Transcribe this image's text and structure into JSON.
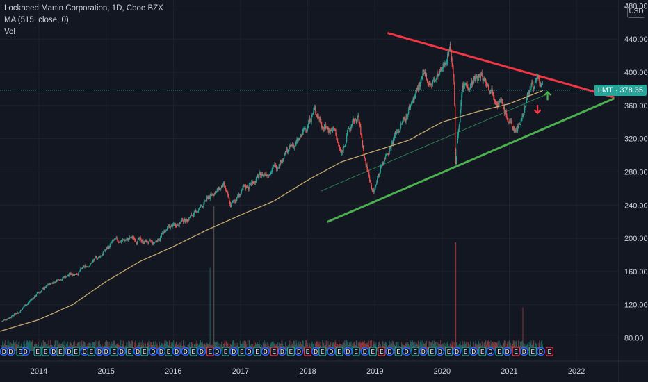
{
  "legend": {
    "title": "Lockheed Martin Corporation, 1D, Cboe BZX",
    "ma": "MA (515, close, 0)",
    "vol": "Vol"
  },
  "currency": "USD",
  "last_price": {
    "ticker": "LMT",
    "value": "378.35"
  },
  "colors": {
    "background": "#131722",
    "up": "#26a69a",
    "down": "#ef5350",
    "ma": "#c8a96b",
    "resistance": "#f23645",
    "support": "#4caf50",
    "dividend": "#2962ff",
    "earnings": "#f23645"
  },
  "chart_data": {
    "type": "candlestick",
    "y_ticks": [
      "80.00",
      "120.00",
      "160.00",
      "200.00",
      "240.00",
      "280.00",
      "320.00",
      "360.00",
      "400.00",
      "440.00",
      "480.00"
    ],
    "ylim": [
      52,
      487
    ],
    "x_ticks": [
      "2014",
      "2015",
      "2016",
      "2017",
      "2018",
      "2019",
      "2020",
      "2021",
      "2022"
    ],
    "xlim": [
      2013.42,
      2022.63
    ],
    "price_anchors": [
      [
        2013.45,
        100
      ],
      [
        2013.7,
        112
      ],
      [
        2014.0,
        135
      ],
      [
        2014.3,
        152
      ],
      [
        2014.6,
        160
      ],
      [
        2014.9,
        178
      ],
      [
        2015.1,
        195
      ],
      [
        2015.4,
        200
      ],
      [
        2015.7,
        193
      ],
      [
        2015.9,
        210
      ],
      [
        2016.1,
        220
      ],
      [
        2016.3,
        228
      ],
      [
        2016.6,
        255
      ],
      [
        2016.75,
        262
      ],
      [
        2016.85,
        238
      ],
      [
        2016.95,
        250
      ],
      [
        2017.2,
        270
      ],
      [
        2017.5,
        285
      ],
      [
        2017.7,
        305
      ],
      [
        2017.9,
        320
      ],
      [
        2018.05,
        348
      ],
      [
        2018.1,
        355
      ],
      [
        2018.25,
        335
      ],
      [
        2018.4,
        330
      ],
      [
        2018.5,
        300
      ],
      [
        2018.6,
        330
      ],
      [
        2018.75,
        345
      ],
      [
        2018.85,
        295
      ],
      [
        2018.98,
        255
      ],
      [
        2019.1,
        290
      ],
      [
        2019.3,
        325
      ],
      [
        2019.45,
        345
      ],
      [
        2019.6,
        375
      ],
      [
        2019.75,
        395
      ],
      [
        2019.85,
        385
      ],
      [
        2020.0,
        400
      ],
      [
        2020.12,
        435
      ],
      [
        2020.18,
        390
      ],
      [
        2020.2,
        280
      ],
      [
        2020.23,
        320
      ],
      [
        2020.3,
        380
      ],
      [
        2020.45,
        390
      ],
      [
        2020.6,
        395
      ],
      [
        2020.75,
        380
      ],
      [
        2020.9,
        360
      ],
      [
        2021.0,
        338
      ],
      [
        2021.1,
        330
      ],
      [
        2021.2,
        350
      ],
      [
        2021.3,
        380
      ],
      [
        2021.4,
        390
      ],
      [
        2021.5,
        378.35
      ]
    ],
    "ma": {
      "period": 515,
      "points": [
        [
          2013.42,
          88
        ],
        [
          2014.0,
          102
        ],
        [
          2014.5,
          120
        ],
        [
          2015.0,
          148
        ],
        [
          2015.5,
          172
        ],
        [
          2016.0,
          190
        ],
        [
          2016.5,
          210
        ],
        [
          2017.0,
          228
        ],
        [
          2017.5,
          245
        ],
        [
          2018.0,
          270
        ],
        [
          2018.5,
          292
        ],
        [
          2019.0,
          305
        ],
        [
          2019.5,
          318
        ],
        [
          2020.0,
          340
        ],
        [
          2020.5,
          352
        ],
        [
          2021.0,
          362
        ],
        [
          2021.5,
          378
        ]
      ]
    },
    "trendlines": [
      {
        "name": "resistance",
        "from": [
          2019.2,
          447
        ],
        "to": [
          2022.55,
          370
        ]
      },
      {
        "name": "support",
        "from": [
          2018.3,
          220
        ],
        "to": [
          2022.55,
          368
        ]
      },
      {
        "name": "inner-channel",
        "from": [
          2018.2,
          257
        ],
        "to": [
          2021.6,
          375
        ]
      }
    ],
    "markers": [
      {
        "type": "arrow-down",
        "x": 2021.42,
        "y": 355,
        "color": "#f23645"
      },
      {
        "type": "arrow-up",
        "x": 2021.57,
        "y": 372,
        "color": "#4caf50"
      }
    ],
    "volume": {
      "baseline": 0.02,
      "spikes": [
        [
          2016.6,
          0.4
        ],
        [
          2016.55,
          0.23
        ],
        [
          2020.2,
          0.3
        ],
        [
          2021.2,
          0.12
        ]
      ]
    },
    "events": [
      {
        "x": 2013.48,
        "t": "D"
      },
      {
        "x": 2013.58,
        "t": "D"
      },
      {
        "x": 2013.72,
        "t": "E"
      },
      {
        "x": 2013.8,
        "t": "D"
      },
      {
        "x": 2013.98,
        "t": "E"
      },
      {
        "x": 2014.1,
        "t": "E"
      },
      {
        "x": 2014.22,
        "t": "D"
      },
      {
        "x": 2014.32,
        "t": "E"
      },
      {
        "x": 2014.45,
        "t": "D"
      },
      {
        "x": 2014.55,
        "t": "E"
      },
      {
        "x": 2014.68,
        "t": "D"
      },
      {
        "x": 2014.78,
        "t": "E"
      },
      {
        "x": 2014.9,
        "t": "D"
      },
      {
        "x": 2015.0,
        "t": "D"
      },
      {
        "x": 2015.12,
        "t": "E"
      },
      {
        "x": 2015.23,
        "t": "D"
      },
      {
        "x": 2015.35,
        "t": "E"
      },
      {
        "x": 2015.47,
        "t": "D"
      },
      {
        "x": 2015.57,
        "t": "E"
      },
      {
        "x": 2015.7,
        "t": "D"
      },
      {
        "x": 2015.82,
        "t": "D"
      },
      {
        "x": 2015.93,
        "t": "E"
      },
      {
        "x": 2016.05,
        "t": "D"
      },
      {
        "x": 2016.18,
        "t": "D"
      },
      {
        "x": 2016.3,
        "t": "E"
      },
      {
        "x": 2016.42,
        "t": "D"
      },
      {
        "x": 2016.55,
        "t": "E",
        "red": true
      },
      {
        "x": 2016.65,
        "t": "D"
      },
      {
        "x": 2016.78,
        "t": "E"
      },
      {
        "x": 2016.9,
        "t": "D"
      },
      {
        "x": 2017.02,
        "t": "E"
      },
      {
        "x": 2017.13,
        "t": "D"
      },
      {
        "x": 2017.25,
        "t": "E"
      },
      {
        "x": 2017.37,
        "t": "D"
      },
      {
        "x": 2017.5,
        "t": "E",
        "red": true
      },
      {
        "x": 2017.62,
        "t": "D"
      },
      {
        "x": 2017.75,
        "t": "E"
      },
      {
        "x": 2017.87,
        "t": "D"
      },
      {
        "x": 2018.0,
        "t": "E",
        "red": true
      },
      {
        "x": 2018.12,
        "t": "D"
      },
      {
        "x": 2018.22,
        "t": "E"
      },
      {
        "x": 2018.35,
        "t": "D"
      },
      {
        "x": 2018.47,
        "t": "E"
      },
      {
        "x": 2018.6,
        "t": "D"
      },
      {
        "x": 2018.72,
        "t": "E"
      },
      {
        "x": 2018.85,
        "t": "D"
      },
      {
        "x": 2018.97,
        "t": "E"
      },
      {
        "x": 2019.1,
        "t": "E",
        "red": true
      },
      {
        "x": 2019.22,
        "t": "D"
      },
      {
        "x": 2019.35,
        "t": "E"
      },
      {
        "x": 2019.47,
        "t": "D"
      },
      {
        "x": 2019.6,
        "t": "E"
      },
      {
        "x": 2019.72,
        "t": "D"
      },
      {
        "x": 2019.85,
        "t": "E"
      },
      {
        "x": 2019.97,
        "t": "D"
      },
      {
        "x": 2020.1,
        "t": "E"
      },
      {
        "x": 2020.22,
        "t": "D"
      },
      {
        "x": 2020.35,
        "t": "E"
      },
      {
        "x": 2020.47,
        "t": "D"
      },
      {
        "x": 2020.6,
        "t": "E"
      },
      {
        "x": 2020.72,
        "t": "D"
      },
      {
        "x": 2020.85,
        "t": "E"
      },
      {
        "x": 2020.97,
        "t": "D"
      },
      {
        "x": 2021.1,
        "t": "E",
        "red": true
      },
      {
        "x": 2021.22,
        "t": "D"
      },
      {
        "x": 2021.35,
        "t": "E"
      },
      {
        "x": 2021.47,
        "t": "D"
      },
      {
        "x": 2021.6,
        "t": "E",
        "red": true
      }
    ]
  }
}
